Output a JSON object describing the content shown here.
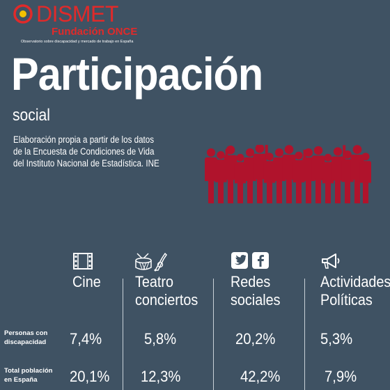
{
  "logo": {
    "name": "DISMET",
    "foundation": "Fundación ONCE",
    "tagline": "Observatorio sobre discapacidad y mercado de trabajo en España"
  },
  "header": {
    "title": "Participación",
    "subtitle": "social",
    "source_lines": [
      "Elaboración propia a partir de los datos",
      "de la Encuesta de Condiciones de Vida",
      "del Instituto Nacional de Estadística. INE"
    ]
  },
  "colors": {
    "background": "#3f5263",
    "accent_red": "#b0132c",
    "brand_red": "#e02a2a",
    "text": "#ffffff"
  },
  "table": {
    "categories": [
      {
        "label_lines": [
          "Cine"
        ],
        "icon": "film-icon"
      },
      {
        "label_lines": [
          "Teatro",
          "conciertos"
        ],
        "icon": "drum-trumpet-icon"
      },
      {
        "label_lines": [
          "Redes",
          "sociales"
        ],
        "icon": "twitter-facebook-icon"
      },
      {
        "label_lines": [
          "Actividades",
          "Políticas"
        ],
        "icon": "megaphone-icon"
      }
    ],
    "rows": [
      {
        "label_lines": [
          "Personas con",
          "discapacidad"
        ],
        "values": [
          "7,4%",
          "5,8%",
          "20,2%",
          "5,3%"
        ]
      },
      {
        "label_lines": [
          "Total población",
          "en España"
        ],
        "values": [
          "20,1%",
          "12,3%",
          "42,2%",
          "7,9%"
        ]
      }
    ]
  }
}
